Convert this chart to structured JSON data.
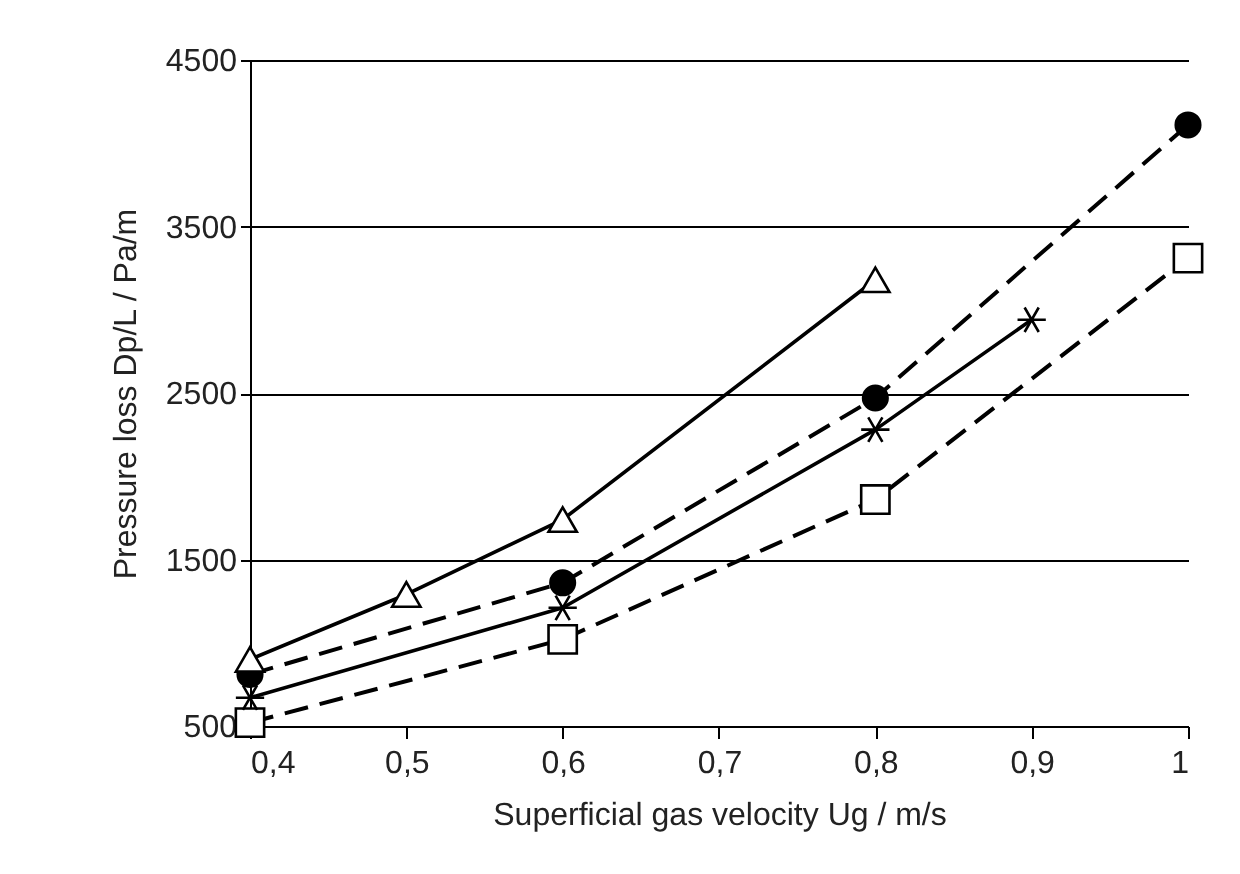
{
  "chart_data": {
    "type": "line",
    "xlabel": "Superficial gas velocity Ug / m/s",
    "ylabel": "Pressure loss  Dp/L / Pa/m",
    "xlim": [
      0.4,
      1
    ],
    "xticks": [
      {
        "value": 0.4,
        "label": "0,4"
      },
      {
        "value": 0.5,
        "label": "0,5"
      },
      {
        "value": 0.6,
        "label": "0,6"
      },
      {
        "value": 0.7,
        "label": "0,7"
      },
      {
        "value": 0.8,
        "label": "0,8"
      },
      {
        "value": 0.9,
        "label": "0,9"
      },
      1
    ],
    "ylim": [
      500,
      4500
    ],
    "yticks": [
      500,
      1500,
      2500,
      3500,
      4500
    ],
    "grid": "y",
    "series": [
      {
        "color": "#000000",
        "marker": "triangle",
        "line_style": "solid",
        "x": [
          0.4,
          0.5,
          0.6,
          0.8
        ],
        "values": [
          900,
          1290,
          1740,
          3180
        ]
      },
      {
        "color": "#000000",
        "marker": "circle",
        "line_style": "dashed",
        "x": [
          0.4,
          0.6,
          0.8,
          1.0
        ],
        "values": [
          810,
          1360,
          2470,
          4110
        ]
      },
      {
        "color": "#000000",
        "marker": "cross",
        "line_style": "solid",
        "x": [
          0.4,
          0.6,
          0.8,
          0.9
        ],
        "values": [
          670,
          1210,
          2280,
          2940
        ]
      },
      {
        "color": "#000000",
        "marker": "square",
        "line_style": "dashed",
        "x": [
          0.4,
          0.6,
          0.8,
          1.0
        ],
        "values": [
          520,
          1020,
          1860,
          3310
        ]
      }
    ]
  }
}
